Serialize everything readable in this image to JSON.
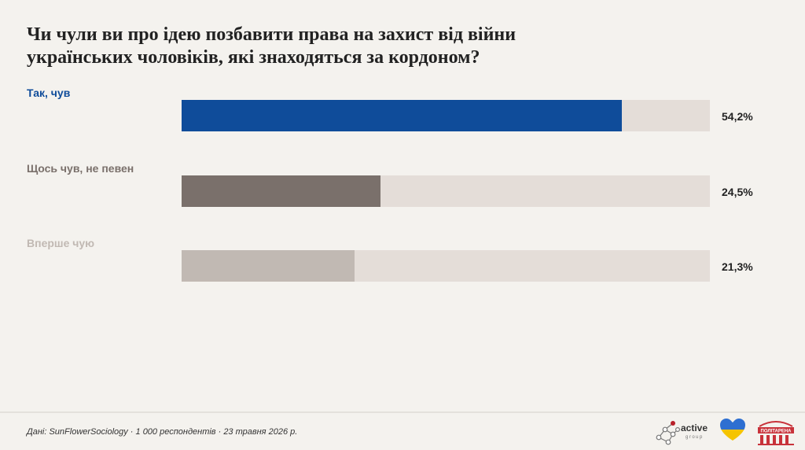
{
  "title": "Чи чули ви про ідею позбавити права на захист від війни українських чоловіків, які знаходяться за кордоном?",
  "chart_data": {
    "type": "bar",
    "orientation": "horizontal",
    "categories": [
      "Так, чув",
      "Щось чув, не певен",
      "Вперше чую"
    ],
    "values": [
      54.2,
      24.5,
      21.3
    ],
    "value_labels": [
      "54,2%",
      "24,5%",
      "21,3%"
    ],
    "xlim": [
      0,
      65
    ],
    "colors": [
      "#0f4c9a",
      "#7a706b",
      "#c1b9b3"
    ],
    "label_colors": [
      "#0f4c9a",
      "#7a706b",
      "#c1b9b3"
    ],
    "track_color": "#e4ddd8",
    "grid": false,
    "legend": "none"
  },
  "footer": {
    "source": "Дані: SunFlowerSociology · 1 000 респондентів · 23 травня 2026 р."
  },
  "logos": {
    "active_group": {
      "word": "active",
      "sub": "group"
    },
    "heart": "heart-logo",
    "politarena": "ПОЛІТАРЕНА"
  }
}
